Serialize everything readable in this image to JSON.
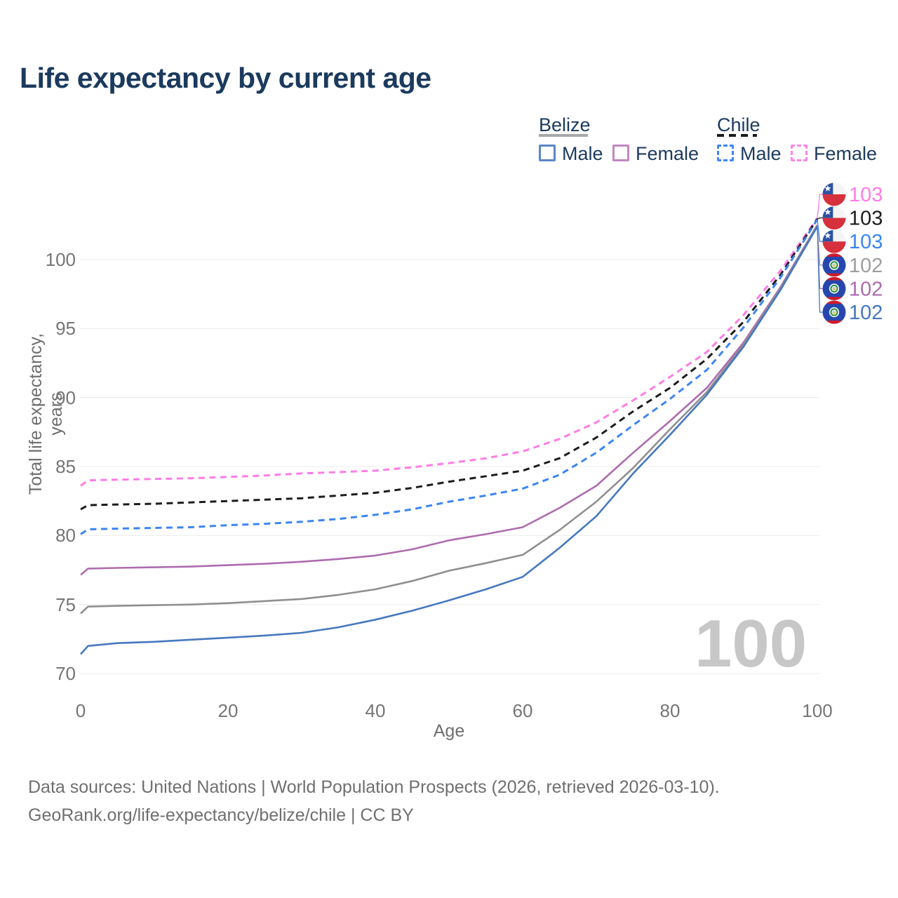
{
  "header": {
    "title": "Life expectancy by current age"
  },
  "legend": {
    "groups": [
      {
        "country": "Belize",
        "line_style": "solid",
        "swatch_color": "#a8a8a8",
        "items": [
          {
            "label": "Male",
            "color": "#5b87c6",
            "dashed": false
          },
          {
            "label": "Female",
            "color": "#c287c0",
            "dashed": false
          }
        ]
      },
      {
        "country": "Chile",
        "line_style": "dashed",
        "swatch_color": "#1c1c1c",
        "items": [
          {
            "label": "Male",
            "color": "#4285f4",
            "dashed": true
          },
          {
            "label": "Female",
            "color": "#ff85e2",
            "dashed": true
          }
        ]
      }
    ]
  },
  "watermark": "100",
  "footer": {
    "line1": "Data sources: United Nations | World Population Prospects (2026, retrieved 2026-03-10).",
    "line2": "GeoRank.org/life-expectancy/belize/chile | CC BY"
  },
  "chart_data": {
    "type": "line",
    "title": "Life expectancy by current age",
    "xlabel": "Age",
    "ylabel": "Total life expectancy, years",
    "x_ticks": [
      0,
      20,
      40,
      60,
      80,
      100
    ],
    "y_ticks": [
      70,
      75,
      80,
      85,
      90,
      95,
      100
    ],
    "xlim": [
      0,
      100
    ],
    "ylim": [
      70,
      100
    ],
    "grid": "horizontal-only",
    "legend_position": "top-right",
    "ages": [
      0,
      1,
      5,
      10,
      15,
      20,
      25,
      30,
      35,
      40,
      45,
      50,
      55,
      60,
      65,
      70,
      75,
      80,
      85,
      90,
      95,
      100
    ],
    "series": [
      {
        "name": "Belize Female",
        "country": "Belize",
        "sex": "Female",
        "color": "#ae6cae",
        "dashed": false,
        "end_label": "102",
        "values": [
          77.15,
          77.6,
          77.65,
          77.7,
          77.75,
          77.85,
          77.95,
          78.1,
          78.3,
          78.55,
          79.0,
          79.65,
          80.1,
          80.6,
          82.0,
          83.6,
          86.0,
          88.3,
          90.7,
          94.0,
          98.0,
          102.5
        ]
      },
      {
        "name": "Belize Both sexes",
        "country": "Belize",
        "sex": "Both",
        "color": "#8f8f8f",
        "dashed": false,
        "end_label": "102",
        "values": [
          74.35,
          74.85,
          74.9,
          74.95,
          75.0,
          75.1,
          75.25,
          75.4,
          75.7,
          76.1,
          76.7,
          77.45,
          78.0,
          78.6,
          80.4,
          82.45,
          84.9,
          87.7,
          90.4,
          93.85,
          97.9,
          102.45
        ]
      },
      {
        "name": "Belize Male",
        "country": "Belize",
        "sex": "Male",
        "color": "#4678be",
        "dashed": false,
        "end_label": "102",
        "values": [
          71.4,
          72.0,
          72.2,
          72.3,
          72.45,
          72.6,
          72.75,
          72.95,
          73.35,
          73.9,
          74.55,
          75.3,
          76.1,
          77.0,
          79.1,
          81.4,
          84.5,
          87.3,
          90.2,
          93.7,
          97.8,
          102.4
        ]
      },
      {
        "name": "Chile Female",
        "country": "Chile",
        "sex": "Female",
        "color": "#ff7ce6",
        "dashed": true,
        "end_label": "103",
        "values": [
          83.6,
          84.0,
          84.05,
          84.1,
          84.15,
          84.25,
          84.35,
          84.5,
          84.6,
          84.7,
          84.95,
          85.25,
          85.6,
          86.1,
          87.0,
          88.2,
          89.8,
          91.5,
          93.3,
          96.0,
          99.2,
          103.0
        ]
      },
      {
        "name": "Chile Both sexes",
        "country": "Chile",
        "sex": "Both",
        "color": "#1c1c1c",
        "dashed": true,
        "end_label": "103",
        "values": [
          81.9,
          82.2,
          82.25,
          82.3,
          82.4,
          82.5,
          82.6,
          82.7,
          82.9,
          83.1,
          83.45,
          83.9,
          84.3,
          84.7,
          85.6,
          87.1,
          89.0,
          90.7,
          92.8,
          95.5,
          98.9,
          102.95
        ]
      },
      {
        "name": "Chile Male",
        "country": "Chile",
        "sex": "Male",
        "color": "#3c85f2",
        "dashed": true,
        "end_label": "103",
        "values": [
          80.1,
          80.45,
          80.5,
          80.55,
          80.6,
          80.75,
          80.85,
          81.0,
          81.2,
          81.5,
          81.9,
          82.45,
          82.9,
          83.4,
          84.4,
          86.0,
          88.0,
          89.9,
          92.0,
          95.1,
          98.7,
          102.9
        ]
      }
    ],
    "end_labels": [
      {
        "series": "Chile Female",
        "value": "103",
        "flag": "chile",
        "color": "#ff7ce6"
      },
      {
        "series": "Chile Both sexes",
        "value": "103",
        "flag": "chile",
        "color": "#1c1c1c"
      },
      {
        "series": "Chile Male",
        "value": "103",
        "flag": "chile",
        "color": "#3c85f2"
      },
      {
        "series": "Belize Both sexes",
        "value": "102",
        "flag": "belize",
        "color": "#9e9e9e"
      },
      {
        "series": "Belize Female",
        "value": "102",
        "flag": "belize",
        "color": "#ae6cae"
      },
      {
        "series": "Belize Male",
        "value": "102",
        "flag": "belize",
        "color": "#4678be"
      }
    ]
  }
}
